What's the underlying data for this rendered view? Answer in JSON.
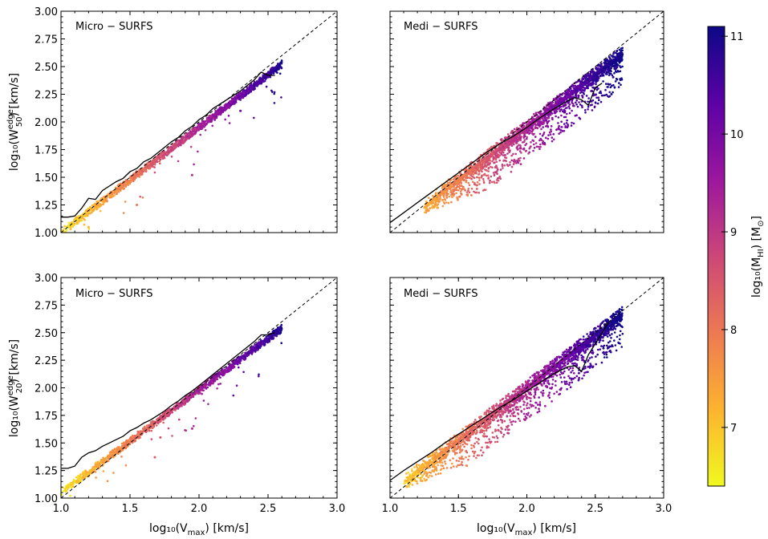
{
  "chart_data": [
    {
      "type": "scatter",
      "title": "Micro − SURFS",
      "ylabel_main": "log₁₀(W",
      "ylabel_sup": "edge",
      "ylabel_sub": "50",
      "ylabel_tail": ") [km/s]",
      "xlabel": "",
      "xlim": [
        1.0,
        3.0
      ],
      "ylim": [
        1.0,
        3.0
      ],
      "show_xticklabels": false,
      "show_yticklabels": true,
      "xticks": [
        "1.0",
        "1.5",
        "2.0",
        "2.5",
        "3.0"
      ],
      "yticks": [
        "1.00",
        "1.25",
        "1.50",
        "1.75",
        "2.00",
        "2.25",
        "2.50",
        "2.75",
        "3.00"
      ],
      "scatter": {
        "x_range": [
          1.0,
          2.6
        ],
        "intercept": 0.05,
        "slope": 0.95,
        "spread_low": 0.06,
        "spread_high": 0.04,
        "tail_prob": 0.03,
        "count": 1500,
        "seed": 11,
        "outliers": [
          [
            1.2,
            1.05
          ],
          [
            1.55,
            1.25
          ],
          [
            1.95,
            1.52
          ],
          [
            2.45,
            2.35
          ],
          [
            2.3,
            2.1
          ]
        ]
      },
      "median_line": {
        "x": [
          1.0,
          1.05,
          1.1,
          1.15,
          1.2,
          1.25,
          1.3,
          1.35,
          1.4,
          1.45,
          1.5,
          1.55,
          1.6,
          1.65,
          1.7,
          1.75,
          1.8,
          1.85,
          1.9,
          1.95,
          2.0,
          2.05,
          2.1,
          2.15,
          2.2,
          2.25,
          2.3,
          2.35,
          2.4,
          2.45,
          2.5,
          2.55
        ],
        "y": [
          1.14,
          1.14,
          1.15,
          1.22,
          1.31,
          1.3,
          1.38,
          1.42,
          1.46,
          1.49,
          1.55,
          1.58,
          1.64,
          1.67,
          1.72,
          1.77,
          1.82,
          1.86,
          1.92,
          1.96,
          2.02,
          2.06,
          2.12,
          2.16,
          2.2,
          2.24,
          2.28,
          2.33,
          2.38,
          2.45,
          2.42,
          2.42
        ]
      }
    },
    {
      "type": "scatter",
      "title": "Medi − SURFS",
      "xlabel": "",
      "xlim": [
        1.0,
        3.0
      ],
      "ylim": [
        1.0,
        3.0
      ],
      "show_xticklabels": false,
      "show_yticklabels": false,
      "xticks": [
        "1.0",
        "1.5",
        "2.0",
        "2.5",
        "3.0"
      ],
      "yticks": [
        "1.00",
        "1.25",
        "1.50",
        "1.75",
        "2.00",
        "2.25",
        "2.50",
        "2.75",
        "3.00"
      ],
      "scatter": {
        "x_range": [
          1.25,
          2.7
        ],
        "intercept": 0.05,
        "slope": 0.95,
        "spread_low": 0.12,
        "spread_high": 0.03,
        "tail_prob": 0.25,
        "count": 3000,
        "seed": 23,
        "outliers": []
      },
      "median_line": {
        "x": [
          1.0,
          1.1,
          1.2,
          1.3,
          1.4,
          1.5,
          1.6,
          1.7,
          1.8,
          1.9,
          2.0,
          2.1,
          2.2,
          2.3,
          2.35,
          2.4,
          2.45,
          2.5,
          2.55
        ],
        "y": [
          1.09,
          1.18,
          1.27,
          1.36,
          1.45,
          1.54,
          1.63,
          1.72,
          1.8,
          1.87,
          1.95,
          2.04,
          2.12,
          2.19,
          2.22,
          2.2,
          2.15,
          2.31,
          2.35
        ]
      }
    },
    {
      "type": "scatter",
      "title": "Micro − SURFS",
      "ylabel_main": "log₁₀(W",
      "ylabel_sup": "edge",
      "ylabel_sub": "20",
      "ylabel_tail": ") [km/s]",
      "xlabel_main": "log₁₀(V",
      "xlabel_sub": "max",
      "xlabel_tail": ") [km/s]",
      "xlim": [
        1.0,
        3.0
      ],
      "ylim": [
        1.0,
        3.0
      ],
      "show_xticklabels": true,
      "show_yticklabels": true,
      "xticks": [
        "1.0",
        "1.5",
        "2.0",
        "2.5",
        "3.0"
      ],
      "yticks": [
        "1.00",
        "1.25",
        "1.50",
        "1.75",
        "2.00",
        "2.25",
        "2.50",
        "2.75",
        "3.00"
      ],
      "scatter": {
        "x_range": [
          1.0,
          2.6
        ],
        "intercept": 0.12,
        "slope": 0.93,
        "spread_low": 0.06,
        "spread_high": 0.03,
        "tail_prob": 0.03,
        "count": 1500,
        "seed": 37,
        "outliers": [
          [
            1.2,
            1.2
          ],
          [
            1.68,
            1.37
          ],
          [
            1.95,
            1.63
          ],
          [
            1.72,
            1.55
          ]
        ]
      },
      "median_line": {
        "x": [
          1.0,
          1.05,
          1.1,
          1.15,
          1.2,
          1.25,
          1.3,
          1.35,
          1.4,
          1.45,
          1.5,
          1.55,
          1.6,
          1.65,
          1.7,
          1.75,
          1.8,
          1.85,
          1.9,
          1.95,
          2.0,
          2.05,
          2.1,
          2.15,
          2.2,
          2.25,
          2.3,
          2.35,
          2.4,
          2.45,
          2.5,
          2.55
        ],
        "y": [
          1.27,
          1.27,
          1.29,
          1.37,
          1.41,
          1.43,
          1.47,
          1.5,
          1.53,
          1.56,
          1.61,
          1.64,
          1.68,
          1.71,
          1.75,
          1.79,
          1.84,
          1.88,
          1.93,
          1.97,
          2.02,
          2.07,
          2.12,
          2.17,
          2.22,
          2.27,
          2.32,
          2.37,
          2.42,
          2.48,
          2.48,
          2.5
        ]
      }
    },
    {
      "type": "scatter",
      "title": "Medi − SURFS",
      "xlabel_main": "log₁₀(V",
      "xlabel_sub": "max",
      "xlabel_tail": ") [km/s]",
      "xlim": [
        1.0,
        3.0
      ],
      "ylim": [
        1.0,
        3.0
      ],
      "show_xticklabels": true,
      "show_yticklabels": false,
      "xticks": [
        "1.0",
        "1.5",
        "2.0",
        "2.5",
        "3.0"
      ],
      "yticks": [
        "1.00",
        "1.25",
        "1.50",
        "1.75",
        "2.00",
        "2.25",
        "2.50",
        "2.75",
        "3.00"
      ],
      "scatter": {
        "x_range": [
          1.1,
          2.7
        ],
        "intercept": 0.1,
        "slope": 0.95,
        "spread_low": 0.12,
        "spread_high": 0.03,
        "tail_prob": 0.25,
        "count": 3000,
        "seed": 53,
        "outliers": []
      },
      "median_line": {
        "x": [
          1.0,
          1.1,
          1.2,
          1.3,
          1.4,
          1.5,
          1.6,
          1.7,
          1.8,
          1.9,
          2.0,
          2.1,
          2.2,
          2.3,
          2.35,
          2.4,
          2.45,
          2.5,
          2.55,
          2.6
        ],
        "y": [
          1.16,
          1.25,
          1.33,
          1.41,
          1.5,
          1.58,
          1.66,
          1.74,
          1.82,
          1.89,
          1.97,
          2.05,
          2.13,
          2.19,
          2.2,
          2.15,
          2.3,
          2.4,
          2.5,
          2.6
        ]
      }
    }
  ],
  "colorbar": {
    "label_main": "log₁₀(M",
    "label_sub": "HI",
    "label_tail": ") [M",
    "label_sun": "⊙",
    "label_end": "]",
    "min": 6.4,
    "max": 11.1,
    "ticks": [
      "7",
      "8",
      "9",
      "10",
      "11"
    ],
    "tick_values": [
      7,
      8,
      9,
      10,
      11
    ],
    "colormap": "plasma_r",
    "color_stops": [
      "#f0f921",
      "#fdb32f",
      "#ed7953",
      "#cc4778",
      "#9c179e",
      "#5c01a6",
      "#0d0887"
    ]
  },
  "reference_line": "dashed 1:1",
  "median_color": "#000000"
}
